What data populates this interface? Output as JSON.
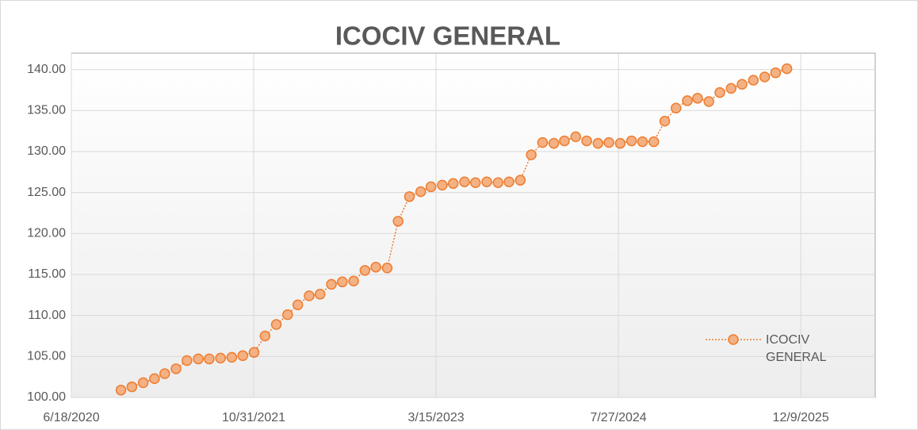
{
  "chart_data": {
    "type": "line",
    "title": "ICOCIV GENERAL",
    "x": [
      "11/1/2020",
      "12/1/2020",
      "1/1/2021",
      "2/1/2021",
      "3/1/2021",
      "4/1/2021",
      "5/1/2021",
      "6/1/2021",
      "7/1/2021",
      "8/1/2021",
      "9/1/2021",
      "10/1/2021",
      "11/1/2021",
      "12/1/2021",
      "1/1/2022",
      "2/1/2022",
      "3/1/2022",
      "4/1/2022",
      "5/1/2022",
      "6/1/2022",
      "7/1/2022",
      "8/1/2022",
      "9/1/2022",
      "10/1/2022",
      "11/1/2022",
      "12/1/2022",
      "1/1/2023",
      "2/1/2023",
      "3/1/2023",
      "4/1/2023",
      "5/1/2023",
      "6/1/2023",
      "7/1/2023",
      "8/1/2023",
      "9/1/2023",
      "10/1/2023",
      "11/1/2023",
      "12/1/2023",
      "1/1/2024",
      "2/1/2024",
      "3/1/2024",
      "4/1/2024",
      "5/1/2024",
      "6/1/2024",
      "7/1/2024",
      "8/1/2024",
      "9/1/2024",
      "10/1/2024",
      "11/1/2024",
      "12/1/2024",
      "1/1/2025",
      "2/1/2025",
      "3/1/2025",
      "4/1/2025",
      "5/1/2025",
      "6/1/2025",
      "7/1/2025",
      "8/1/2025",
      "9/1/2025",
      "10/1/2025",
      "11/1/2025"
    ],
    "series": [
      {
        "name": "ICOCIV GENERAL",
        "color": "#ed7d31",
        "marker_fill": "#f4b183",
        "values": [
          100.9,
          101.3,
          101.8,
          102.3,
          102.9,
          103.5,
          104.5,
          104.7,
          104.7,
          104.8,
          104.9,
          105.1,
          105.5,
          107.5,
          108.9,
          110.1,
          111.3,
          112.4,
          112.6,
          113.8,
          114.1,
          114.2,
          115.5,
          115.9,
          115.8,
          121.5,
          124.5,
          125.1,
          125.7,
          125.9,
          126.1,
          126.3,
          126.2,
          126.3,
          126.2,
          126.3,
          126.5,
          129.6,
          131.1,
          131.0,
          131.3,
          131.8,
          131.3,
          131.0,
          131.1,
          131.0,
          131.3,
          131.2,
          131.2,
          133.7,
          135.3,
          136.2,
          136.5,
          136.1,
          137.2,
          137.7,
          138.2,
          138.7,
          139.1,
          139.6,
          140.1
        ]
      }
    ],
    "xlim": [
      "6/18/2020",
      "7/1/2026"
    ],
    "xticks": [
      "6/18/2020",
      "10/31/2021",
      "3/15/2023",
      "7/27/2024",
      "12/9/2025"
    ],
    "ylim": [
      100,
      142
    ],
    "yticks": [
      {
        "value": 100,
        "label": "100.00"
      },
      {
        "value": 105,
        "label": "105.00"
      },
      {
        "value": 110,
        "label": "110.00"
      },
      {
        "value": 115,
        "label": "115.00"
      },
      {
        "value": 120,
        "label": "120.00"
      },
      {
        "value": 125,
        "label": "125.00"
      },
      {
        "value": 130,
        "label": "130.00"
      },
      {
        "value": 135,
        "label": "135.00"
      },
      {
        "value": 140,
        "label": "140.00"
      }
    ],
    "grid": true,
    "legend": "lower right"
  }
}
